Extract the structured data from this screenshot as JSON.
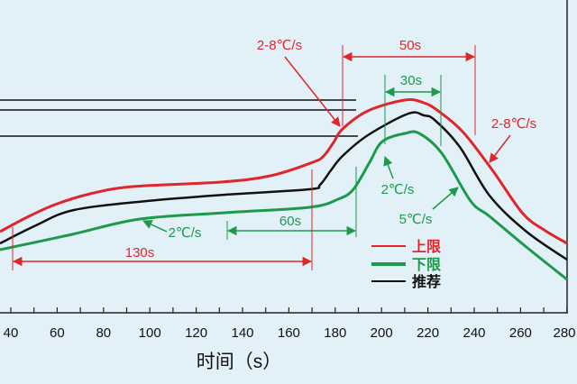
{
  "chart_data": {
    "type": "line",
    "xlabel": "时间（s）",
    "xticks": [
      40,
      60,
      80,
      100,
      120,
      140,
      160,
      180,
      200,
      220,
      240,
      260,
      280
    ],
    "xlim": [
      40,
      280
    ],
    "minor_tick_step": 10,
    "grid": false,
    "legend_position": "bottom-center",
    "series": [
      {
        "name": "上限",
        "color": "#e0262b"
      },
      {
        "name": "下限",
        "color": "#1c9a4a"
      },
      {
        "name": "推荐",
        "color": "#111111"
      }
    ],
    "annotations": {
      "ramp_upper_left": "2-8℃/s",
      "ramp_upper_right": "2-8℃/s",
      "span_50": "50s",
      "span_30": "30s",
      "span_60": "60s",
      "span_130": "130s",
      "rate_lower_preheat": "2℃/s",
      "rate_lower_rise": "2℃/s",
      "rate_lower_cool": "5℃/s"
    }
  }
}
